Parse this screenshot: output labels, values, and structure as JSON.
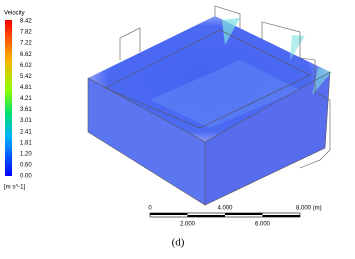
{
  "legend": {
    "title": "Velocity",
    "ticks": [
      "8.42",
      "7.82",
      "7.22",
      "6.62",
      "6.02",
      "5.42",
      "4.81",
      "4.21",
      "3.61",
      "3.01",
      "2.41",
      "1.81",
      "1.20",
      "0.60",
      "0.00"
    ],
    "unit": "[m s^-1]"
  },
  "scale_bar": {
    "top_labels": [
      "0",
      "4.000",
      "8.000 (m)"
    ],
    "bottom_labels": [
      "2.000",
      "6.000"
    ]
  },
  "caption": "(d)"
}
